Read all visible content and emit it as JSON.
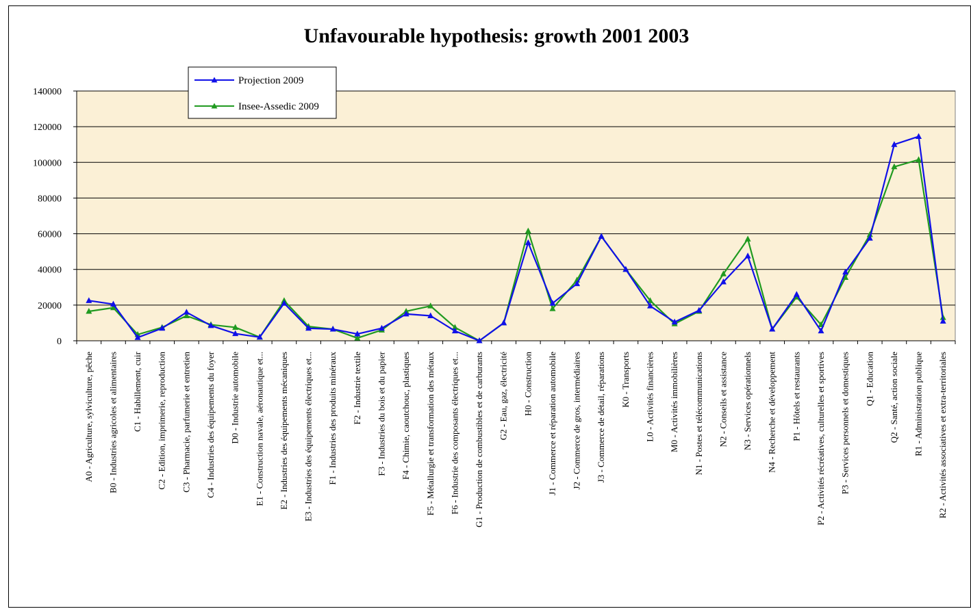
{
  "chart_data": {
    "type": "line",
    "title": "Unfavourable hypothesis: growth 2001 2003",
    "ylim": [
      0,
      140000
    ],
    "yticks": [
      0,
      20000,
      40000,
      60000,
      80000,
      100000,
      120000,
      140000
    ],
    "grid": true,
    "legend_position": "top-left",
    "plot_background": "#FBF0D6",
    "categories": [
      "A0 - Agriculture, sylviculture, pêche",
      "B0 - Industries agricoles et alimentaires",
      "C1 - Habillement, cuir",
      "C2 - Edition, imprimerie, reproduction",
      "C3 - Pharmacie, parfumerie et entretien",
      "C4 - Industries des équipements du foyer",
      "D0 - Industrie automobile",
      "E1 - Construction navale, aéronautique et...",
      "E2 - Industries des équipements mécaniques",
      "E3 - Industries des équipements électriques et...",
      "F1 - Industries des produits minéraux",
      "F2 - Industrie textile",
      "F3 - Industries du bois et du papier",
      "F4 - Chimie, caoutchouc, plastiques",
      "F5 - Métallurgie et transformation des métaux",
      "F6 - Industrie des composants électriques et...",
      "G1 - Production de combustibles et de carburants",
      "G2 - Eau, gaz, électricité",
      "H0 - Construction",
      "J1 - Commerce et réparation automobile",
      "J2 - Commerce de gros, intermédiaires",
      "J3 - Commerce de détail, réparations",
      "K0 - Transports",
      "L0 - Activités financières",
      "M0 - Activités immobilières",
      "N1 - Postes et télécommunications",
      "N2 - Conseils et assistance",
      "N3 - Services opérationnels",
      "N4 - Recherche et développement",
      "P1 - Hôtels et restaurants",
      "P2 - Activités récréatives, culturelles et sportives",
      "P3 - Services personnels et domestiques",
      "Q1 - Education",
      "Q2 - Santé, action sociale",
      "R1 - Administration publique",
      "R2 - Activités associatives et extra-territoriales"
    ],
    "series": [
      {
        "name": "Projection 2009",
        "color": "#1010E8",
        "values": [
          22500,
          20500,
          1800,
          7000,
          16000,
          8500,
          4000,
          2000,
          21000,
          7000,
          6500,
          3800,
          7000,
          15000,
          14000,
          5500,
          0,
          10000,
          55000,
          21000,
          32000,
          58500,
          40000,
          19500,
          10500,
          17000,
          33000,
          47500,
          6500,
          26000,
          5500,
          38500,
          57500,
          110000,
          114500,
          11000
        ]
      },
      {
        "name": "Insee-Assedic 2009",
        "color": "#209A20",
        "values": [
          16500,
          18500,
          3500,
          7500,
          14000,
          9000,
          7500,
          2000,
          22500,
          8000,
          6500,
          1500,
          6000,
          16500,
          19500,
          7500,
          0,
          10000,
          61500,
          18000,
          34000,
          58500,
          40000,
          22500,
          9500,
          16500,
          37500,
          57000,
          6500,
          24500,
          9000,
          35500,
          59500,
          97500,
          101500,
          13000
        ]
      }
    ]
  }
}
